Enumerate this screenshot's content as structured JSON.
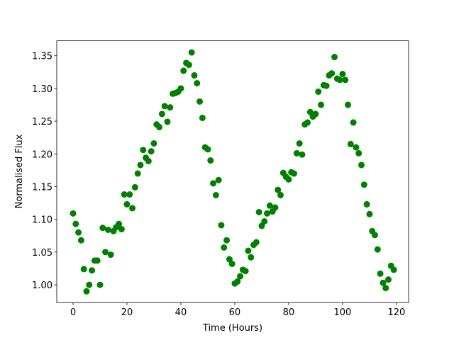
{
  "chart_data": {
    "type": "scatter",
    "xlabel": "Time (Hours)",
    "ylabel": "Normalised Flux",
    "color": "#008000",
    "x": [
      0,
      1,
      2,
      3,
      4,
      5,
      6,
      7,
      8,
      9,
      10,
      11,
      12,
      13,
      14,
      15,
      16,
      17,
      18,
      19,
      20,
      21,
      22,
      23,
      24,
      25,
      26,
      27,
      28,
      29,
      30,
      31,
      32,
      33,
      34,
      35,
      36,
      37,
      38,
      39,
      40,
      41,
      42,
      43,
      44,
      45,
      46,
      47,
      48,
      49,
      50,
      51,
      52,
      53,
      54,
      55,
      56,
      57,
      58,
      59,
      60,
      61,
      62,
      63,
      64,
      65,
      66,
      67,
      68,
      69,
      70,
      71,
      72,
      73,
      74,
      75,
      76,
      77,
      78,
      79,
      80,
      81,
      82,
      83,
      84,
      85,
      86,
      87,
      88,
      89,
      90,
      91,
      92,
      93,
      94,
      95,
      96,
      97,
      98,
      99,
      100,
      101,
      102,
      103,
      104,
      105,
      106,
      107,
      108,
      109,
      110,
      111,
      112,
      113,
      114,
      115,
      116,
      117,
      118,
      119
    ],
    "values": [
      1.109,
      1.093,
      1.08,
      1.068,
      1.024,
      0.99,
      1.0,
      1.022,
      1.037,
      1.037,
      1.0,
      1.087,
      1.05,
      1.084,
      1.046,
      1.082,
      1.088,
      1.093,
      1.085,
      1.138,
      1.123,
      1.138,
      1.117,
      1.149,
      1.17,
      1.183,
      1.206,
      1.194,
      1.189,
      1.204,
      1.216,
      1.245,
      1.241,
      1.261,
      1.273,
      1.249,
      1.271,
      1.292,
      1.293,
      1.295,
      1.3,
      1.327,
      1.339,
      1.336,
      1.355,
      1.32,
      1.308,
      1.28,
      1.255,
      1.21,
      1.207,
      1.19,
      1.155,
      1.137,
      1.16,
      1.091,
      1.057,
      1.068,
      1.039,
      1.032,
      1.002,
      1.005,
      1.013,
      1.023,
      1.021,
      1.052,
      1.042,
      1.061,
      1.065,
      1.111,
      1.09,
      1.097,
      1.109,
      1.121,
      1.112,
      1.118,
      1.145,
      1.137,
      1.171,
      1.165,
      1.161,
      1.172,
      1.17,
      1.201,
      1.216,
      1.199,
      1.245,
      1.248,
      1.264,
      1.257,
      1.261,
      1.295,
      1.275,
      1.305,
      1.304,
      1.32,
      1.323,
      1.348,
      1.315,
      1.313,
      1.322,
      1.313,
      1.275,
      1.215,
      1.248,
      1.21,
      1.201,
      1.183,
      1.153,
      1.123,
      1.108,
      1.082,
      1.076,
      1.054,
      1.017,
      1.003,
      0.995,
      1.008,
      1.029,
      1.023
    ],
    "xlim": [
      -6.05,
      124.5
    ],
    "ylim": [
      0.9728,
      1.3728
    ],
    "xticks": [
      0,
      20,
      40,
      60,
      80,
      100,
      120
    ],
    "yticks": [
      {
        "value": 1.0,
        "label": "1.00"
      },
      1.05,
      {
        "value": 1.1,
        "label": "1.10"
      },
      1.15,
      {
        "value": 1.2,
        "label": "1.20"
      },
      1.25,
      {
        "value": 1.3,
        "label": "1.30"
      },
      1.35
    ]
  }
}
